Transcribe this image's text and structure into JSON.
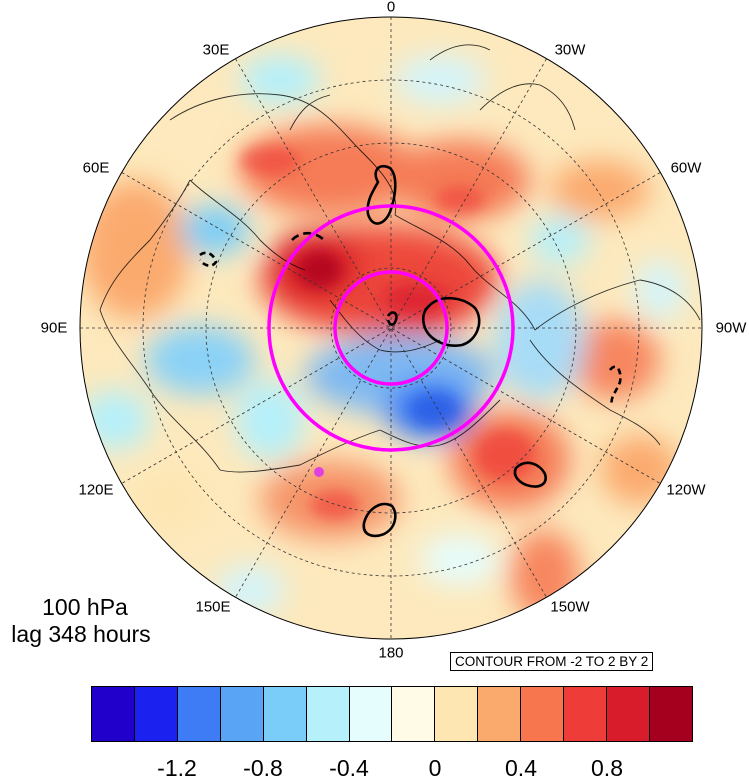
{
  "map": {
    "longitude_labels": [
      "0",
      "30W",
      "60W",
      "90W",
      "120W",
      "150W",
      "180",
      "150E",
      "120E",
      "90E",
      "60E",
      "30E"
    ],
    "level_label": "100 hPa",
    "lag_label": "lag 348 hours",
    "contour_info": "CONTOUR FROM -2 TO 2 BY 2",
    "colors": {
      "circle": "#ff00ff",
      "marker": "#e040e0",
      "contour": "#000000"
    }
  },
  "colorbar": {
    "colors": [
      "#2200cc",
      "#1b22f0",
      "#3d7cf5",
      "#59a4f5",
      "#79cdf8",
      "#b5f0fb",
      "#e5fdfd",
      "#fffbe6",
      "#fee6b2",
      "#fbaa6e",
      "#f7764e",
      "#ee3c38",
      "#d81c2c",
      "#a6001f"
    ],
    "tick_labels": [
      "-1.2",
      "-0.8",
      "-0.4",
      "0",
      "0.4",
      "0.8"
    ]
  }
}
